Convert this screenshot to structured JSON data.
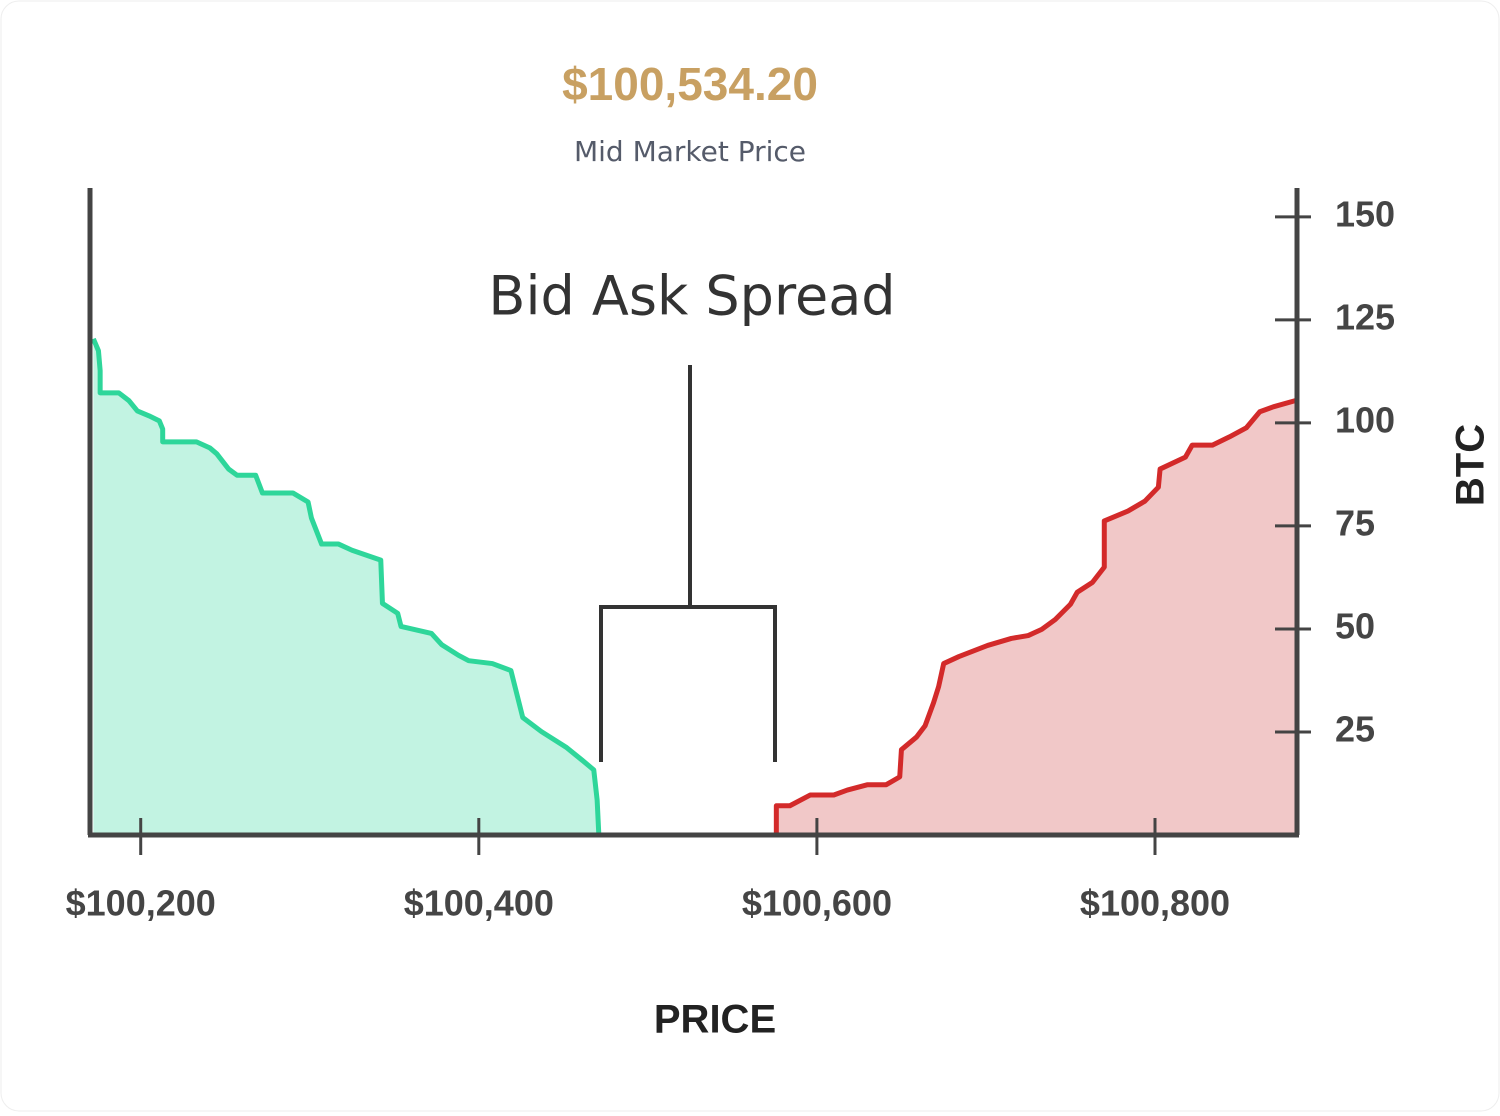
{
  "chart_data": {
    "type": "area",
    "title": "$100,534.20",
    "subtitle": "Mid Market Price",
    "annotation": "Bid Ask Spread",
    "x_label": "PRICE",
    "y_label": "BTC",
    "xlim": [
      100170,
      100884
    ],
    "xticks": [
      {
        "value": 100200,
        "label": "$100,200"
      },
      {
        "value": 100400,
        "label": "$100,400"
      },
      {
        "value": 100600,
        "label": "$100,600"
      },
      {
        "value": 100800,
        "label": "$100,800"
      }
    ],
    "ylim": [
      0,
      157
    ],
    "yticks": [
      25,
      50,
      75,
      100,
      125,
      150
    ],
    "y_axis_side": "right",
    "series": [
      {
        "color": "#2ed69a",
        "fill": "#c2f3e2",
        "x": [
          100172,
          100175,
          100176,
          100176,
          100187,
          100193,
          100198,
          100205,
          100211,
          100213,
          100213,
          100233,
          100241,
          100245,
          100252,
          100257,
          100268,
          100272,
          100290,
          100299,
          100301,
          100307,
          100317,
          100325,
          100342,
          100343,
          100352,
          100354,
          100372,
          100378,
          100388,
          100394,
          100408,
          100419,
          100426,
          100437,
          100452,
          100461,
          100468,
          100470,
          100471
        ],
        "values": [
          120.4,
          117.5,
          112.7,
          107.3,
          107.3,
          105.4,
          102.9,
          101.7,
          100.5,
          98.5,
          95.4,
          95.4,
          93.9,
          92.5,
          88.8,
          87.3,
          87.3,
          83,
          83,
          80.8,
          76.9,
          70.6,
          70.6,
          69.1,
          66.7,
          56.2,
          53.8,
          50.6,
          48.9,
          46.2,
          43.6,
          42.3,
          41.6,
          39.9,
          28.5,
          25.1,
          21.2,
          18.2,
          15.8,
          8.5,
          0
        ]
      },
      {
        "color": "#d32a2a",
        "fill": "#f1c8c8",
        "x": [
          100576,
          100576,
          100584,
          100596,
          100610,
          100618,
          100630,
          100641,
          100649,
          100650,
          100659,
          100664,
          100669,
          100672,
          100675,
          100684,
          100701,
          100715,
          100725,
          100733,
          100741,
          100750,
          100754,
          100763,
          100770,
          100770,
          100784,
          100794,
          100802,
          100803,
          100818,
          100822,
          100834,
          100844,
          100854,
          100862,
          100870,
          100883
        ],
        "values": [
          0,
          7.1,
          7.1,
          9.7,
          9.7,
          10.9,
          12.2,
          12.2,
          14.1,
          20.7,
          23.8,
          26.5,
          32.1,
          36,
          41.6,
          43.3,
          46,
          47.7,
          48.4,
          49.9,
          52.3,
          56,
          58.9,
          61.3,
          65,
          76.2,
          78.6,
          81,
          84.4,
          88.8,
          91.7,
          94.6,
          94.6,
          96.6,
          98.8,
          102.7,
          103.9,
          105.4
        ]
      }
    ]
  }
}
